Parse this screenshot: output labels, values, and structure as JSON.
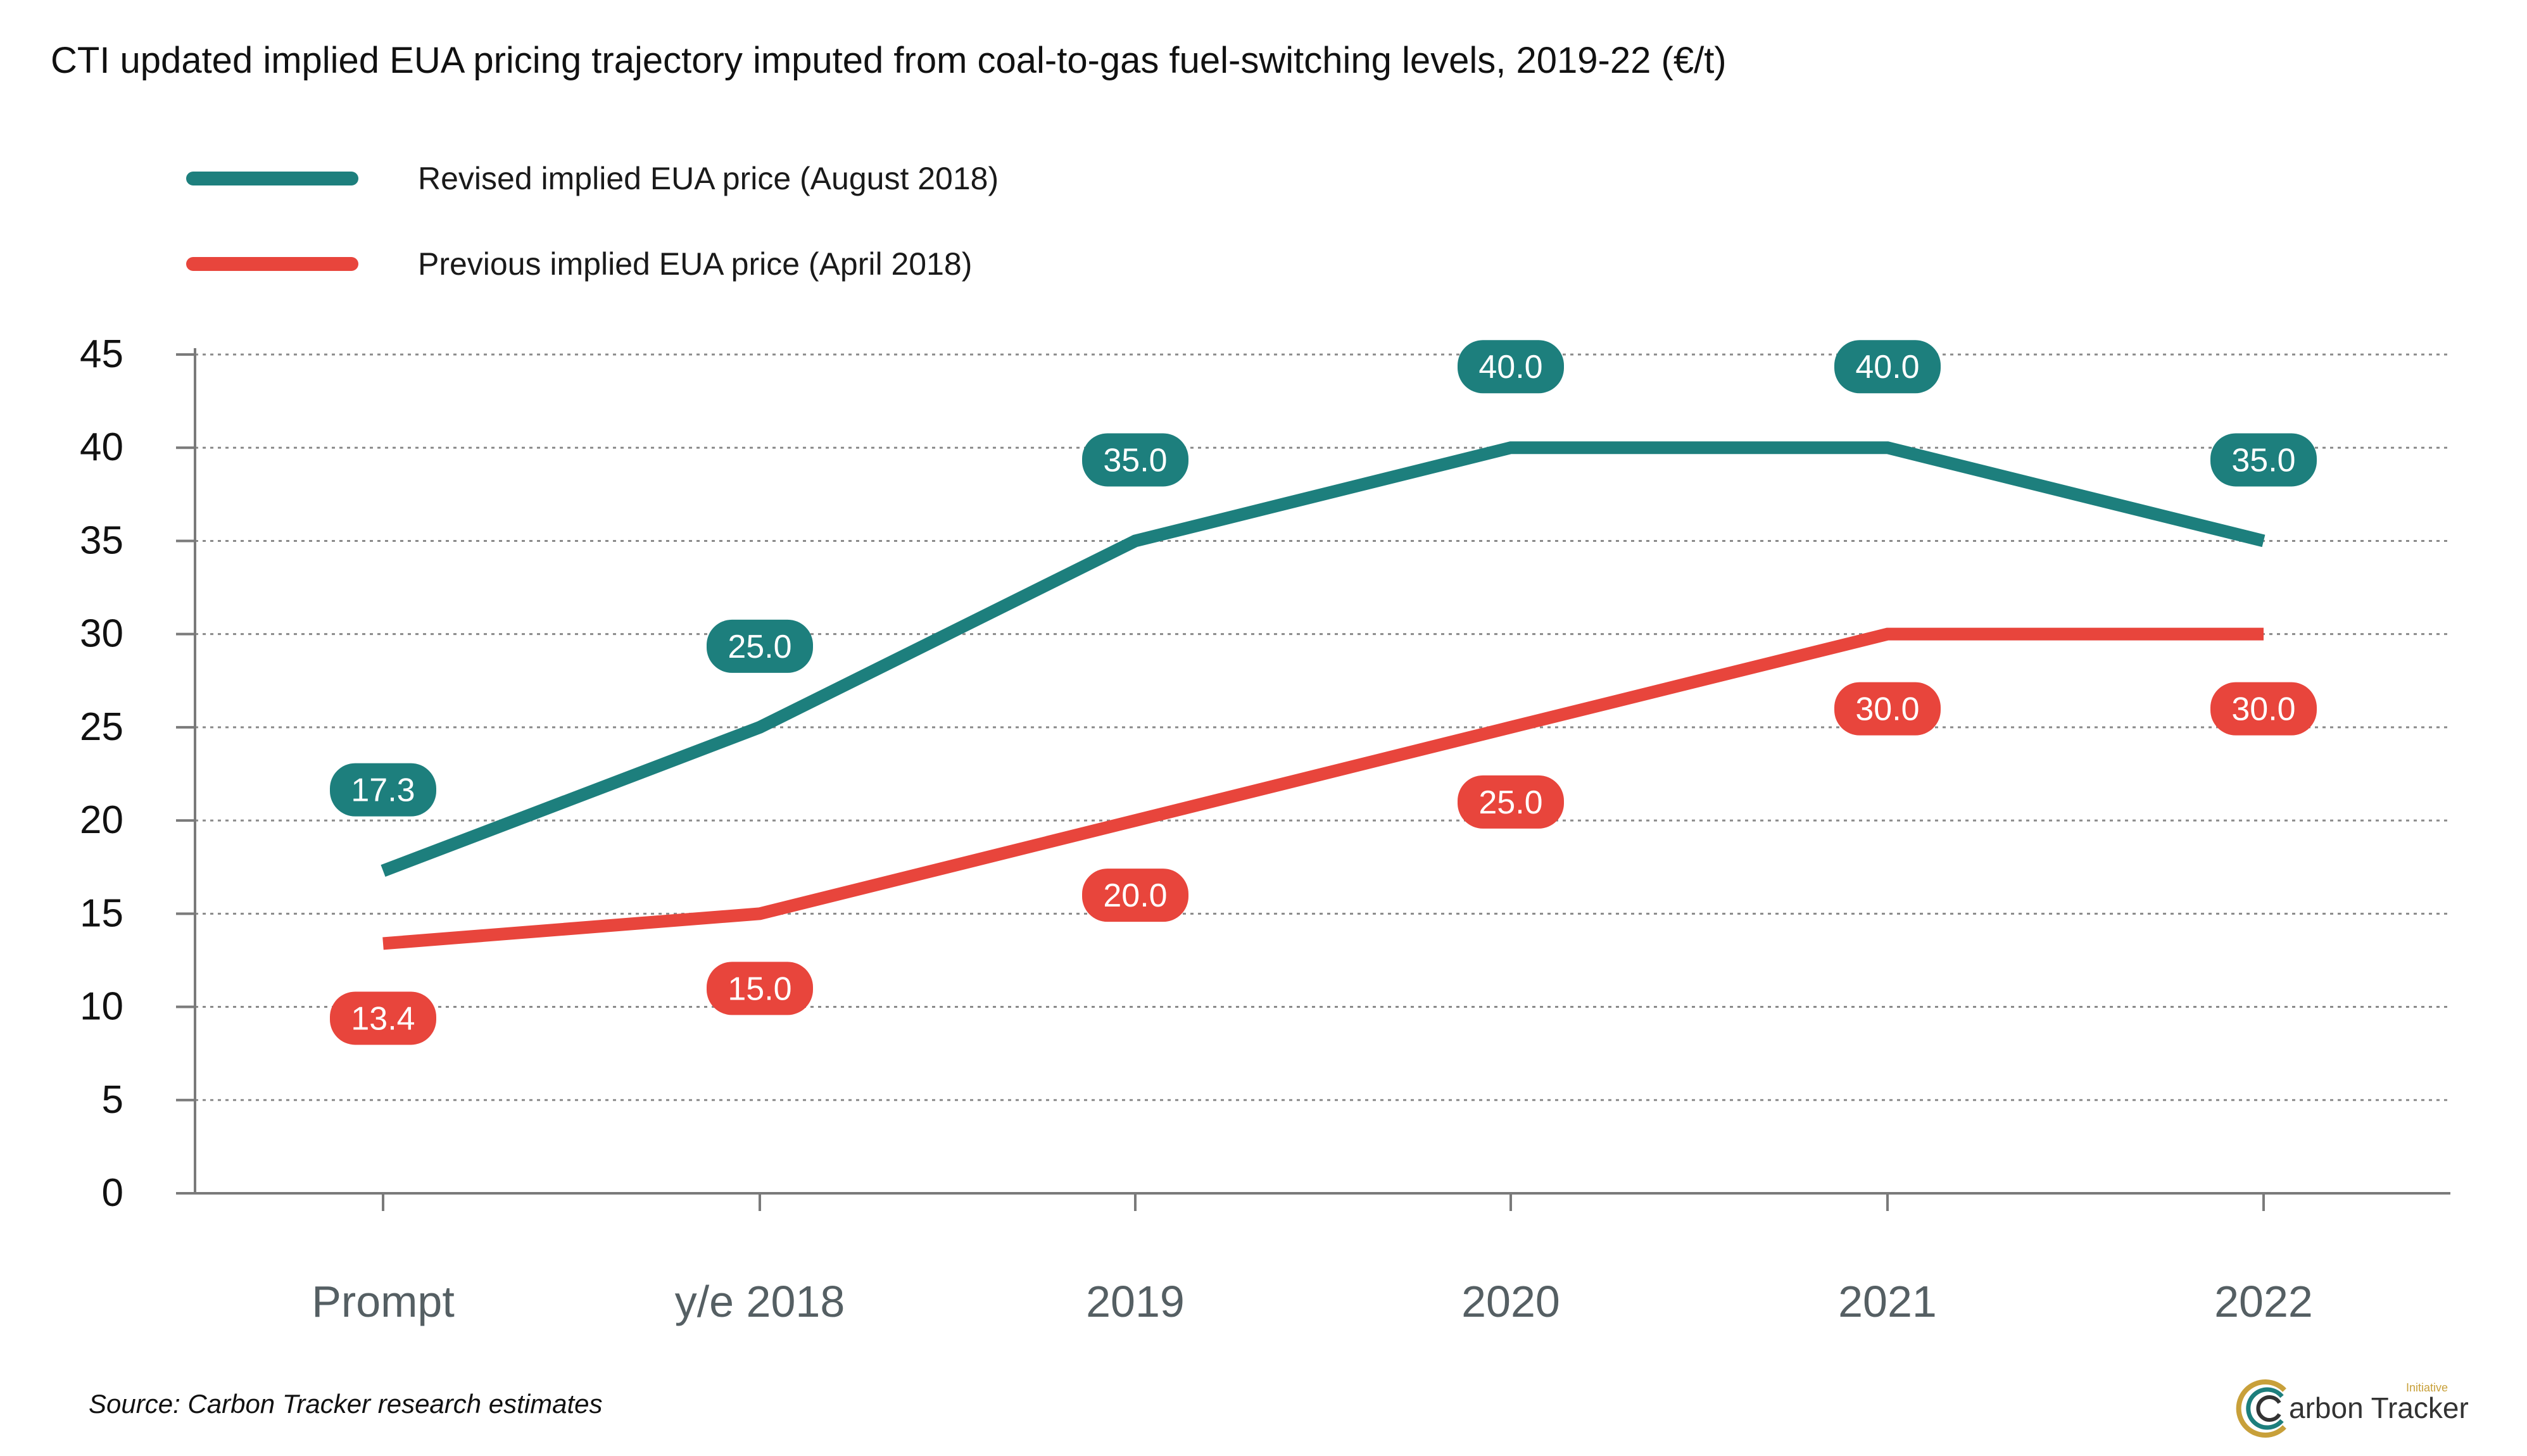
{
  "chart_data": {
    "type": "line",
    "title": "CTI updated implied EUA pricing trajectory imputed from coal-to-gas fuel-switching levels, 2019-22 (€/t)",
    "categories": [
      "Prompt",
      "y/e 2018",
      "2019",
      "2020",
      "2021",
      "2022"
    ],
    "ylim": [
      0,
      45
    ],
    "yticks": [
      0,
      5,
      10,
      15,
      20,
      25,
      30,
      35,
      40,
      45
    ],
    "grid": true,
    "legend_position": "top-left",
    "series": [
      {
        "name": "Revised implied EUA price (August 2018)",
        "color": "#1d7f7d",
        "values": [
          17.3,
          25.0,
          35.0,
          40.0,
          40.0,
          35.0
        ],
        "labels": [
          "17.3",
          "25.0",
          "35.0",
          "40.0",
          "40.0",
          "35.0"
        ],
        "label_position": "above"
      },
      {
        "name": "Previous implied EUA price (April 2018)",
        "color": "#e8453c",
        "values": [
          13.4,
          15.0,
          20.0,
          25.0,
          30.0,
          30.0
        ],
        "labels": [
          "13.4",
          "15.0",
          "20.0",
          "25.0",
          "30.0",
          "30.0"
        ],
        "label_position": "below"
      }
    ],
    "source": "Source: Carbon Tracker research estimates"
  },
  "branding": {
    "logo_text": "arbon Tracker",
    "logo_super": "Initiative",
    "logo_icon": "carbon-tracker-c-logo-icon"
  }
}
